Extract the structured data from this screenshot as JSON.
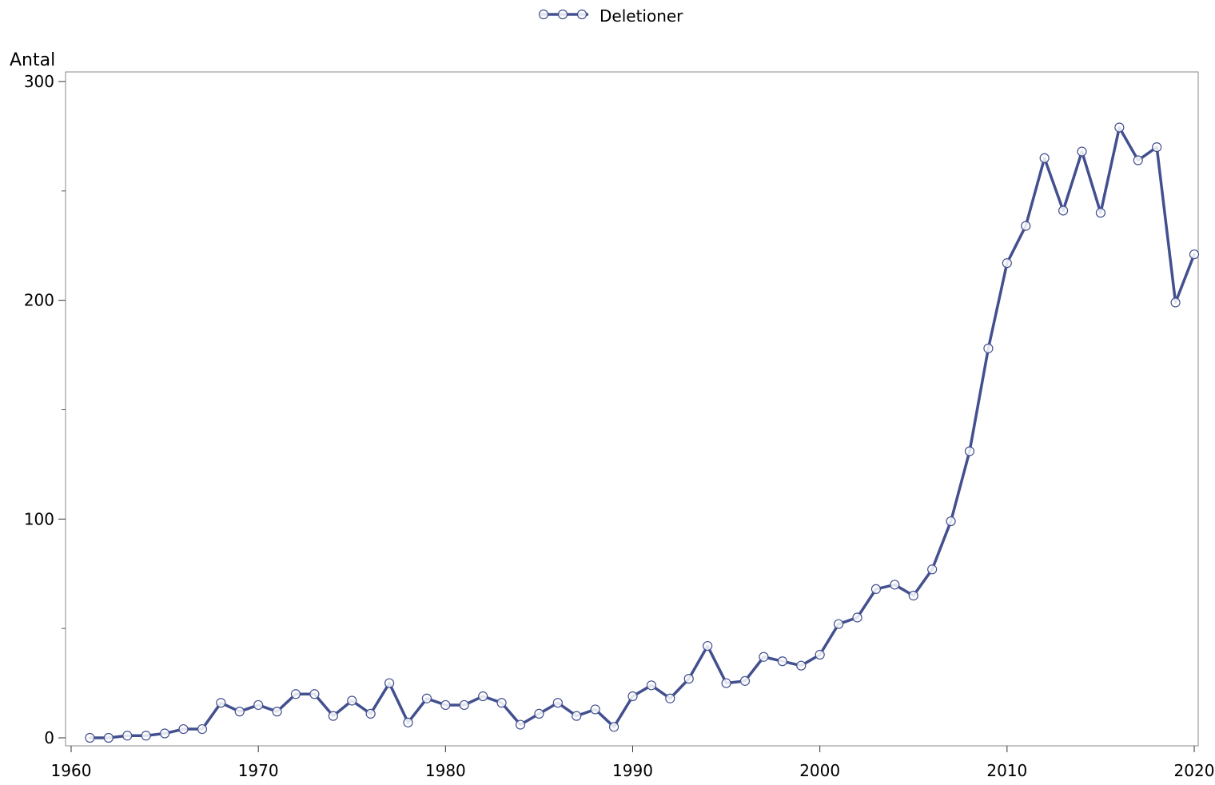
{
  "chart_data": {
    "type": "line",
    "title": "",
    "xlabel": "",
    "ylabel": "Antal",
    "xlim": [
      1960,
      2020
    ],
    "ylim": [
      0,
      300
    ],
    "x_ticks": [
      1960,
      1970,
      1980,
      1990,
      2000,
      2010,
      2020
    ],
    "y_ticks": [
      0,
      100,
      200,
      300
    ],
    "y_minor_ticks": [
      50,
      150,
      250
    ],
    "grid": false,
    "legend_position": "top-center",
    "colors": {
      "series": "#43508f",
      "marker_fill": "#ffffff"
    },
    "series": [
      {
        "name": "Deletioner",
        "x": [
          1961,
          1962,
          1963,
          1964,
          1965,
          1966,
          1967,
          1968,
          1969,
          1970,
          1971,
          1972,
          1973,
          1974,
          1975,
          1976,
          1977,
          1978,
          1979,
          1980,
          1981,
          1982,
          1983,
          1984,
          1985,
          1986,
          1987,
          1988,
          1989,
          1990,
          1991,
          1992,
          1993,
          1994,
          1995,
          1996,
          1997,
          1998,
          1999,
          2000,
          2001,
          2002,
          2003,
          2004,
          2005,
          2006,
          2007,
          2008,
          2009,
          2010,
          2011,
          2012,
          2013,
          2014,
          2015,
          2016,
          2017,
          2018,
          2019,
          2020
        ],
        "values": [
          0,
          0,
          1,
          1,
          2,
          4,
          4,
          16,
          12,
          15,
          12,
          20,
          20,
          10,
          17,
          11,
          25,
          7,
          18,
          15,
          15,
          19,
          16,
          6,
          11,
          16,
          10,
          13,
          5,
          19,
          24,
          18,
          27,
          42,
          25,
          26,
          37,
          35,
          33,
          38,
          52,
          55,
          68,
          70,
          65,
          77,
          99,
          131,
          178,
          217,
          234,
          265,
          241,
          268,
          240,
          279,
          264,
          270,
          199,
          221
        ]
      }
    ]
  }
}
